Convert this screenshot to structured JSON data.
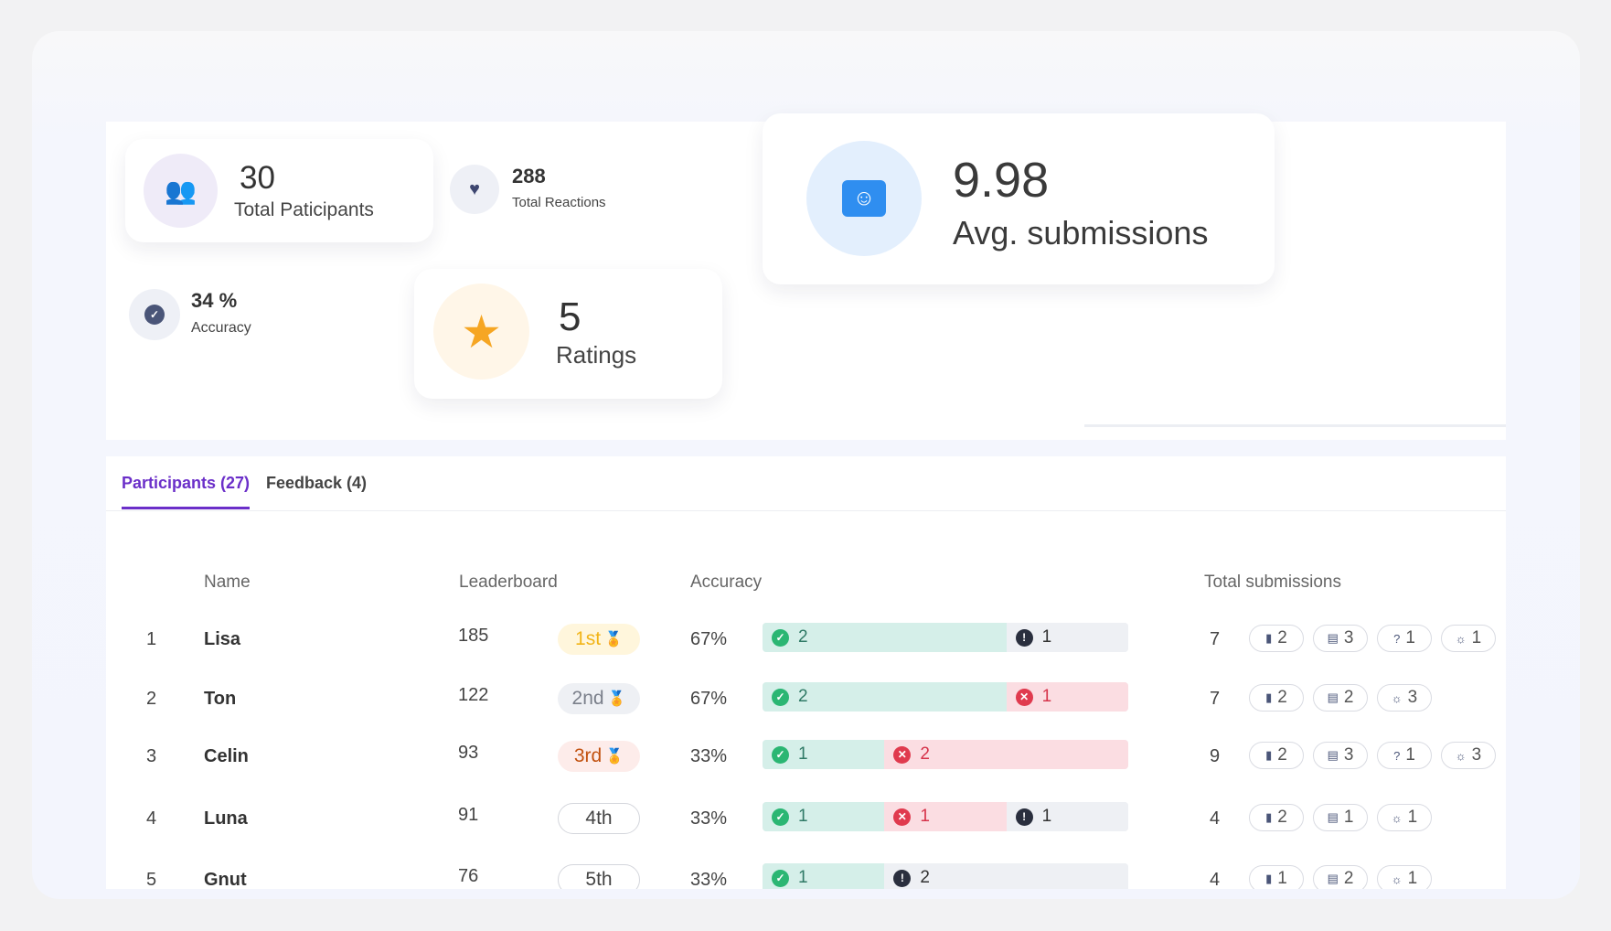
{
  "stats": {
    "participants": {
      "value": "30",
      "label": "Total Paticipants",
      "icon": "people-icon"
    },
    "reactions": {
      "value": "288",
      "label": "Total Reactions",
      "icon": "heart-icon"
    },
    "avg": {
      "value": "9.98",
      "label": "Avg. submissions",
      "icon": "smiley-chat-icon"
    },
    "accuracy": {
      "value": "34 %",
      "label": "Accuracy",
      "icon": "check-icon"
    },
    "ratings": {
      "value": "5",
      "label": "Ratings",
      "icon": "star-icon"
    }
  },
  "tabs": [
    {
      "label": "Participants (27)",
      "active": true
    },
    {
      "label": "Feedback (4)",
      "active": false
    }
  ],
  "table": {
    "headers": {
      "name": "Name",
      "leaderboard": "Leaderboard",
      "accuracy": "Accuracy",
      "total": "Total submissions"
    },
    "rows": [
      {
        "idx": "1",
        "name": "Lisa",
        "score": "185",
        "rank": "1st",
        "medal": "gold",
        "pct": "67%",
        "correct": 2,
        "wrong": 0,
        "skipped": 1,
        "total": "7",
        "chips": [
          [
            "poll",
            "2"
          ],
          [
            "text",
            "3"
          ],
          [
            "qa",
            "1"
          ],
          [
            "idea",
            "1"
          ]
        ]
      },
      {
        "idx": "2",
        "name": "Ton",
        "score": "122",
        "rank": "2nd",
        "medal": "silver",
        "pct": "67%",
        "correct": 2,
        "wrong": 1,
        "skipped": 0,
        "total": "7",
        "chips": [
          [
            "poll",
            "2"
          ],
          [
            "text",
            "2"
          ],
          [
            "idea",
            "3"
          ]
        ]
      },
      {
        "idx": "3",
        "name": "Celin",
        "score": "93",
        "rank": "3rd",
        "medal": "bronze",
        "pct": "33%",
        "correct": 1,
        "wrong": 2,
        "skipped": 0,
        "total": "9",
        "chips": [
          [
            "poll",
            "2"
          ],
          [
            "text",
            "3"
          ],
          [
            "qa",
            "1"
          ],
          [
            "idea",
            "3"
          ]
        ]
      },
      {
        "idx": "4",
        "name": "Luna",
        "score": "91",
        "rank": "4th",
        "medal": "",
        "pct": "33%",
        "correct": 1,
        "wrong": 1,
        "skipped": 1,
        "total": "4",
        "chips": [
          [
            "poll",
            "2"
          ],
          [
            "text",
            "1"
          ],
          [
            "idea",
            "1"
          ]
        ]
      },
      {
        "idx": "5",
        "name": "Gnut",
        "score": "76",
        "rank": "5th",
        "medal": "",
        "pct": "33%",
        "correct": 1,
        "wrong": 0,
        "skipped": 2,
        "total": "4",
        "chips": [
          [
            "poll",
            "1"
          ],
          [
            "text",
            "2"
          ],
          [
            "idea",
            "1"
          ]
        ]
      }
    ]
  },
  "colors": {
    "accent": "#6b2fc9",
    "correct": "#d5efe9",
    "wrong": "#fbdde2",
    "skipped": "#eef0f4",
    "gold": "#f2b417",
    "silver": "#7a7f8a",
    "bronze": "#c2510f"
  }
}
